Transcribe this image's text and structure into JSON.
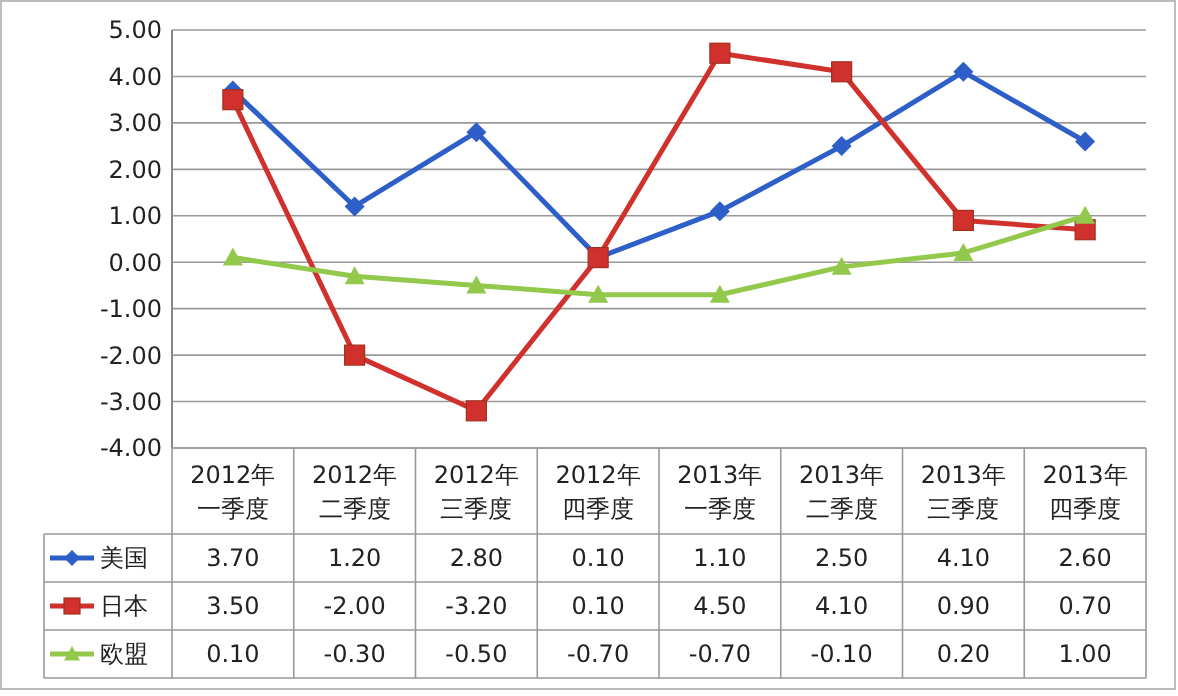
{
  "chart_data": {
    "type": "line",
    "categories": [
      "2012年一季度",
      "2012年二季度",
      "2012年三季度",
      "2012年四季度",
      "2013年一季度",
      "2013年二季度",
      "2013年三季度",
      "2013年四季度"
    ],
    "series": [
      {
        "name": "美国",
        "color": "#2e5fc9",
        "marker": "diamond",
        "values": [
          3.7,
          1.2,
          2.8,
          0.1,
          1.1,
          2.5,
          4.1,
          2.6
        ],
        "value_labels": [
          "3.70",
          "1.20",
          "2.80",
          "0.10",
          "1.10",
          "2.50",
          "4.10",
          "2.60"
        ]
      },
      {
        "name": "日本",
        "color": "#d0312d",
        "marker": "square",
        "values": [
          3.5,
          -2.0,
          -3.2,
          0.1,
          4.5,
          4.1,
          0.9,
          0.7
        ],
        "value_labels": [
          "3.50",
          "-2.00",
          "-3.20",
          "0.10",
          "4.50",
          "4.10",
          "0.90",
          "0.70"
        ]
      },
      {
        "name": "欧盟",
        "color": "#92c84c",
        "marker": "triangle",
        "values": [
          0.1,
          -0.3,
          -0.5,
          -0.7,
          -0.7,
          -0.1,
          0.2,
          1.0
        ],
        "value_labels": [
          "0.10",
          "-0.30",
          "-0.50",
          "-0.70",
          "-0.70",
          "-0.10",
          "0.20",
          "1.00"
        ]
      }
    ],
    "ylim": [
      -4,
      5
    ],
    "yticks": [
      {
        "value": -4,
        "label": "-4.00"
      },
      {
        "value": -3,
        "label": "-3.00"
      },
      {
        "value": -2,
        "label": "-2.00"
      },
      {
        "value": -1,
        "label": "-1.00"
      },
      {
        "value": 0,
        "label": "0.00"
      },
      {
        "value": 1,
        "label": "1.00"
      },
      {
        "value": 2,
        "label": "2.00"
      },
      {
        "value": 3,
        "label": "3.00"
      },
      {
        "value": 4,
        "label": "4.00"
      },
      {
        "value": 5,
        "label": "5.00"
      }
    ],
    "grid": "y",
    "legend": "bottom left",
    "line_style": "solid"
  }
}
